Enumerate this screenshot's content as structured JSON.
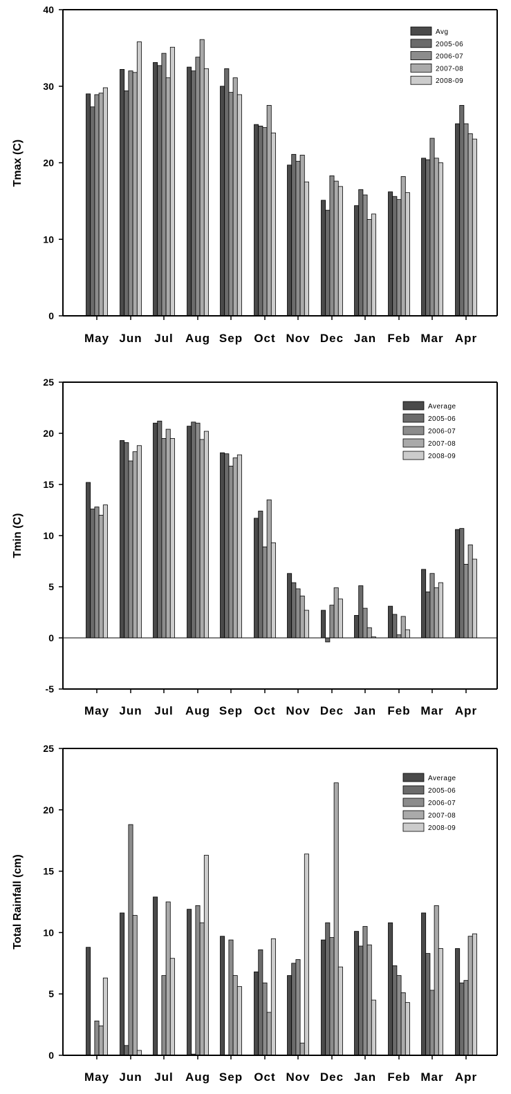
{
  "chart_data": [
    {
      "type": "bar",
      "ylabel": "Tmax (C)",
      "ylim": [
        0,
        40
      ],
      "yticks": [
        0,
        10,
        20,
        30,
        40
      ],
      "categories": [
        "May",
        "Jun",
        "Jul",
        "Aug",
        "Sep",
        "Oct",
        "Nov",
        "Dec",
        "Jan",
        "Feb",
        "Mar",
        "Apr"
      ],
      "zero_line": false,
      "legend_position": "top-right",
      "series": [
        {
          "name": "Avg",
          "color": "#4a4a4a",
          "values": [
            29.0,
            32.2,
            33.1,
            32.5,
            30.0,
            25.0,
            19.7,
            15.1,
            14.4,
            16.2,
            20.6,
            25.1
          ]
        },
        {
          "name": "2005-06",
          "color": "#6b6b6b",
          "values": [
            27.3,
            29.4,
            32.7,
            32.0,
            32.3,
            24.8,
            21.1,
            13.8,
            16.5,
            15.6,
            20.4,
            27.5
          ]
        },
        {
          "name": "2006-07",
          "color": "#8c8c8c",
          "values": [
            28.9,
            32.0,
            34.3,
            33.8,
            29.2,
            24.6,
            20.2,
            18.3,
            15.8,
            15.2,
            23.2,
            25.1
          ]
        },
        {
          "name": "2007-08",
          "color": "#aaaaaa",
          "values": [
            29.1,
            31.8,
            31.1,
            36.1,
            31.1,
            27.5,
            21.0,
            17.6,
            12.6,
            18.2,
            20.6,
            23.8
          ]
        },
        {
          "name": "2008-09",
          "color": "#cccccc",
          "values": [
            29.8,
            35.8,
            35.1,
            32.3,
            28.9,
            23.9,
            17.5,
            16.9,
            13.3,
            16.1,
            20.0,
            23.1
          ]
        }
      ]
    },
    {
      "type": "bar",
      "ylabel": "Tmin (C)",
      "ylim": [
        -5,
        25
      ],
      "yticks": [
        -5,
        0,
        5,
        10,
        15,
        20,
        25
      ],
      "categories": [
        "May",
        "Jun",
        "Jul",
        "Aug",
        "Sep",
        "Oct",
        "Nov",
        "Dec",
        "Jan",
        "Feb",
        "Mar",
        "Apr"
      ],
      "zero_line": true,
      "legend_position": "top-right",
      "series": [
        {
          "name": "Average",
          "color": "#4a4a4a",
          "values": [
            15.2,
            19.3,
            21.0,
            20.7,
            18.1,
            11.7,
            6.3,
            2.7,
            2.2,
            3.1,
            6.7,
            10.6
          ]
        },
        {
          "name": "2005-06",
          "color": "#6b6b6b",
          "values": [
            12.6,
            19.1,
            21.2,
            21.1,
            18.0,
            12.4,
            5.4,
            -0.4,
            5.1,
            2.3,
            4.5,
            10.7
          ]
        },
        {
          "name": "2006-07",
          "color": "#8c8c8c",
          "values": [
            12.8,
            17.3,
            19.5,
            21.0,
            16.8,
            8.9,
            4.8,
            3.2,
            2.9,
            0.3,
            6.3,
            7.2
          ]
        },
        {
          "name": "2007-08",
          "color": "#aaaaaa",
          "values": [
            12.0,
            18.2,
            20.4,
            19.4,
            17.6,
            13.5,
            4.1,
            4.9,
            1.0,
            2.1,
            4.9,
            9.1
          ]
        },
        {
          "name": "2008-09",
          "color": "#cccccc",
          "values": [
            13.0,
            18.8,
            19.5,
            20.2,
            17.9,
            9.3,
            2.7,
            3.8,
            0.1,
            0.8,
            5.4,
            7.7
          ]
        }
      ]
    },
    {
      "type": "bar",
      "ylabel": "Total Rainfall (cm)",
      "ylim": [
        0,
        25
      ],
      "yticks": [
        0,
        5,
        10,
        15,
        20,
        25
      ],
      "categories": [
        "May",
        "Jun",
        "Jul",
        "Aug",
        "Sep",
        "Oct",
        "Nov",
        "Dec",
        "Jan",
        "Feb",
        "Mar",
        "Apr"
      ],
      "zero_line": false,
      "legend_position": "top-right",
      "series": [
        {
          "name": "Average",
          "color": "#4a4a4a",
          "values": [
            8.8,
            11.6,
            12.9,
            11.9,
            9.7,
            6.8,
            6.5,
            9.4,
            10.1,
            10.8,
            11.6,
            8.7
          ]
        },
        {
          "name": "2005-06",
          "color": "#6b6b6b",
          "values": [
            0.0,
            0.8,
            0.0,
            0.1,
            0.0,
            8.6,
            7.5,
            10.8,
            8.9,
            7.3,
            8.3,
            5.9
          ]
        },
        {
          "name": "2006-07",
          "color": "#8c8c8c",
          "values": [
            2.8,
            18.8,
            6.5,
            12.2,
            9.4,
            5.9,
            7.8,
            9.6,
            10.5,
            6.5,
            5.3,
            6.1
          ]
        },
        {
          "name": "2007-08",
          "color": "#aaaaaa",
          "values": [
            2.4,
            11.4,
            12.5,
            10.8,
            6.5,
            3.5,
            1.0,
            22.2,
            9.0,
            5.1,
            12.2,
            9.7
          ]
        },
        {
          "name": "2008-09",
          "color": "#cccccc",
          "values": [
            6.3,
            0.4,
            7.9,
            16.3,
            5.6,
            9.5,
            16.4,
            7.2,
            4.5,
            4.3,
            8.7,
            9.9
          ]
        }
      ]
    }
  ]
}
